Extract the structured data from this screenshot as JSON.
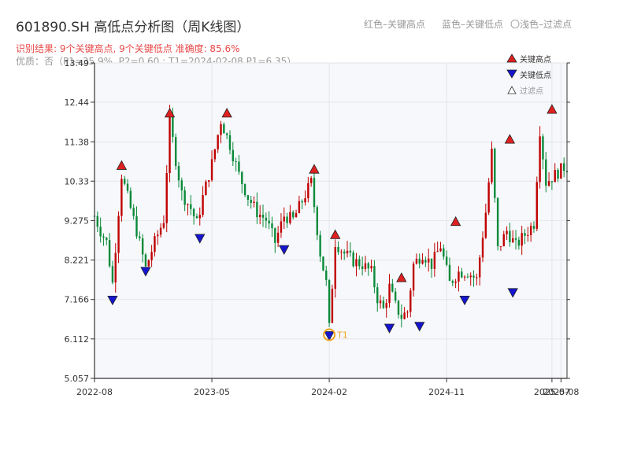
{
  "header": {
    "title": "601890.SH 高低点分析图（周K线图）",
    "note_red": "红色–关键高点",
    "note_blue": "蓝色–关键低点",
    "note_light": "〇浅色–过滤点",
    "result_text": "识别结果: 9个关键高点, 9个关键低点  准确度: 85.6%",
    "quality_text": "优质：否（P1=35.9%, P2=0.60 ; T1=2024-02-08 P1=6.35）"
  },
  "legend": {
    "high_label": "关键高点",
    "low_label": "关键低点",
    "filtered_label": "过滤点"
  },
  "colors": {
    "up": "#c00000",
    "down": "#0a8a3a",
    "high_marker": "#e02020",
    "low_marker": "#1515d0",
    "t1_marker": "#f0a020"
  },
  "chart_data": {
    "type": "candlestick",
    "title": "601890.SH 高低点分析图（周K线图）",
    "y_ticks": [
      "5.057",
      "6.112",
      "7.166",
      "8.221",
      "9.275",
      "10.33",
      "11.38",
      "12.44",
      "13.49"
    ],
    "ylim": [
      5.057,
      13.49
    ],
    "x_ticks": [
      {
        "label": "2022-08",
        "t": 0
      },
      {
        "label": "2023-05",
        "t": 39
      },
      {
        "label": "2024-02",
        "t": 78
      },
      {
        "label": "2024-11",
        "t": 117
      },
      {
        "label": "2025-07",
        "t": 152
      },
      {
        "label": "2025-08",
        "t": 155
      }
    ],
    "t_range": [
      0,
      157
    ],
    "grid": true,
    "legend_position": "top-right",
    "anchors": [
      [
        0,
        9.4
      ],
      [
        2,
        9.0
      ],
      [
        4,
        8.7
      ],
      [
        6,
        7.6
      ],
      [
        9,
        10.5
      ],
      [
        12,
        9.6
      ],
      [
        14,
        9.0
      ],
      [
        17,
        8.0
      ],
      [
        20,
        8.7
      ],
      [
        23,
        9.3
      ],
      [
        25,
        11.95
      ],
      [
        27,
        10.9
      ],
      [
        29,
        10.0
      ],
      [
        32,
        9.6
      ],
      [
        34,
        9.2
      ],
      [
        36,
        9.9
      ],
      [
        39,
        10.8
      ],
      [
        42,
        11.95
      ],
      [
        45,
        11.3
      ],
      [
        48,
        10.5
      ],
      [
        51,
        9.9
      ],
      [
        54,
        9.5
      ],
      [
        57,
        9.3
      ],
      [
        60,
        8.7
      ],
      [
        63,
        9.4
      ],
      [
        66,
        9.3
      ],
      [
        69,
        9.8
      ],
      [
        72,
        10.3
      ],
      [
        75,
        8.4
      ],
      [
        77,
        7.6
      ],
      [
        78,
        6.4
      ],
      [
        80,
        8.7
      ],
      [
        83,
        8.4
      ],
      [
        86,
        8.2
      ],
      [
        89,
        8.1
      ],
      [
        92,
        7.9
      ],
      [
        94,
        7.2
      ],
      [
        96,
        6.9
      ],
      [
        98,
        7.5
      ],
      [
        100,
        7.0
      ],
      [
        102,
        6.7
      ],
      [
        104,
        6.85
      ],
      [
        106,
        8.1
      ],
      [
        109,
        8.4
      ],
      [
        112,
        8.1
      ],
      [
        115,
        8.6
      ],
      [
        118,
        7.6
      ],
      [
        121,
        7.9
      ],
      [
        124,
        7.9
      ],
      [
        127,
        7.7
      ],
      [
        130,
        9.5
      ],
      [
        132,
        11.1
      ],
      [
        134,
        8.5
      ],
      [
        137,
        9.0
      ],
      [
        140,
        8.6
      ],
      [
        143,
        8.9
      ],
      [
        146,
        9.2
      ],
      [
        148,
        11.7
      ],
      [
        150,
        10.3
      ],
      [
        153,
        10.5
      ],
      [
        156,
        10.7
      ]
    ],
    "key_highs": [
      [
        9,
        10.6
      ],
      [
        25,
        12.0
      ],
      [
        44,
        12.0
      ],
      [
        73,
        10.5
      ],
      [
        80,
        8.75
      ],
      [
        102,
        7.6
      ],
      [
        120,
        9.1
      ],
      [
        138,
        11.3
      ],
      [
        152,
        12.1
      ]
    ],
    "key_lows": [
      [
        6,
        7.3
      ],
      [
        17,
        8.07
      ],
      [
        35,
        8.95
      ],
      [
        63,
        8.65
      ],
      [
        78,
        6.35
      ],
      [
        98,
        6.55
      ],
      [
        108,
        6.6
      ],
      [
        123,
        7.3
      ],
      [
        139,
        7.5
      ]
    ],
    "t1": {
      "t": 78,
      "value": 6.35,
      "label": "T1"
    }
  }
}
